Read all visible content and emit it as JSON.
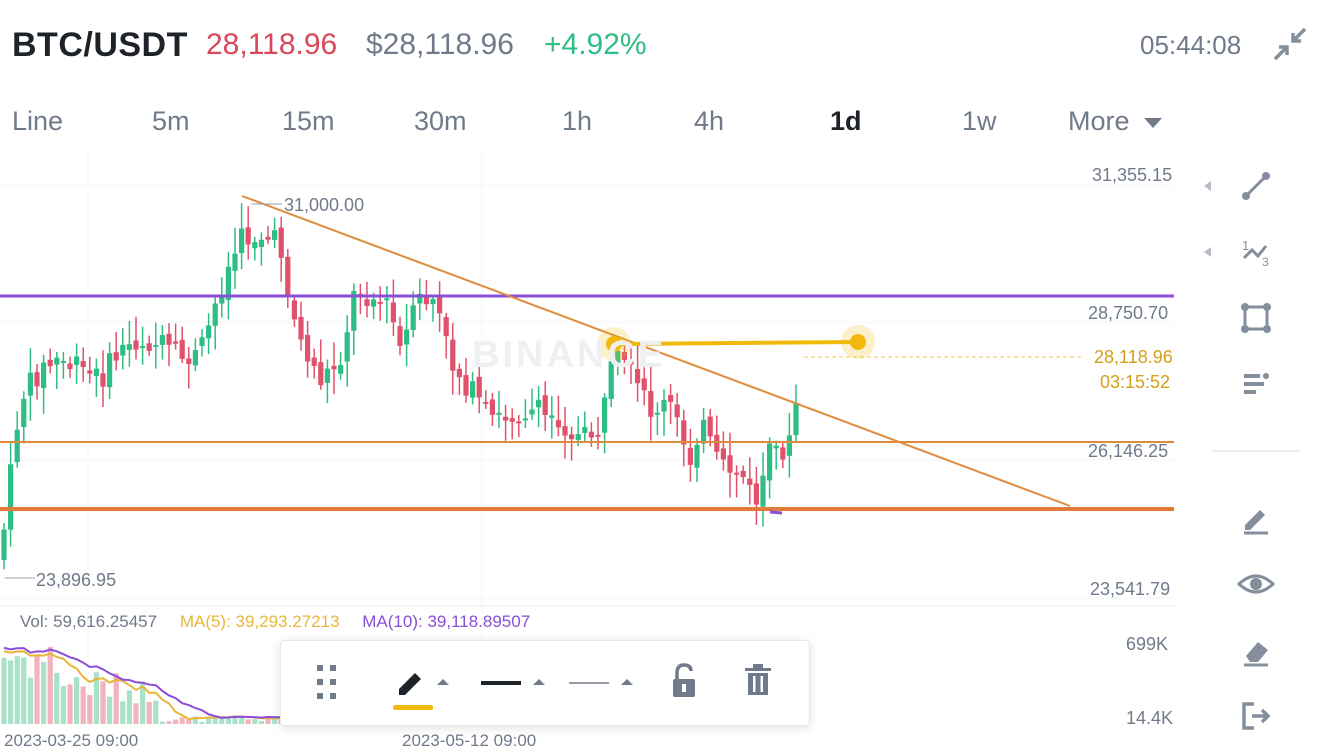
{
  "header": {
    "pair": "BTC/USDT",
    "last_price": "28,118.96",
    "usd_price": "$28,118.96",
    "change": "+4.92%",
    "clock": "05:44:08",
    "collapse_icon": "collapse-arrows-icon"
  },
  "tabs": [
    {
      "label": "Line",
      "active": false
    },
    {
      "label": "5m",
      "active": false
    },
    {
      "label": "15m",
      "active": false
    },
    {
      "label": "30m",
      "active": false
    },
    {
      "label": "1h",
      "active": false
    },
    {
      "label": "4h",
      "active": false
    },
    {
      "label": "1d",
      "active": true
    },
    {
      "label": "1w",
      "active": false
    },
    {
      "label": "More",
      "active": false
    }
  ],
  "chart": {
    "axis_labels": [
      "31,355.15",
      "28,750.70",
      "26,146.25",
      "23,541.79"
    ],
    "high_label": "31,000.00",
    "low_label": "23,896.95",
    "current_price": "28,118.96",
    "countdown": "03:15:52",
    "watermark": "BINANCE",
    "colors": {
      "up": "#2ebd85",
      "down": "#e0516b",
      "trend": "#e08a3c",
      "horizontal": "#8a4fd6",
      "support": "#e07b39",
      "accent": "#f0b90b"
    }
  },
  "volume": {
    "vol": "Vol: 59,616.25457",
    "ma5": "MA(5): 39,293.27213",
    "ma10": "MA(10): 39,118.89507",
    "axis_top": "699K",
    "axis_bottom": "14.4K"
  },
  "dates": [
    "2023-03-25 09:00",
    "2023-05-12 09:00"
  ],
  "right_tools": [
    "trend-line-icon",
    "fibonacci-icon",
    "rectangle-icon",
    "indicator-list-icon",
    "pencil-edit-icon",
    "eye-icon",
    "eraser-icon",
    "exit-icon"
  ],
  "drawing_toolbar": [
    "drag-handle-icon",
    "pencil-icon",
    "line-thick-icon",
    "line-thin-icon",
    "unlock-icon",
    "trash-icon"
  ]
}
